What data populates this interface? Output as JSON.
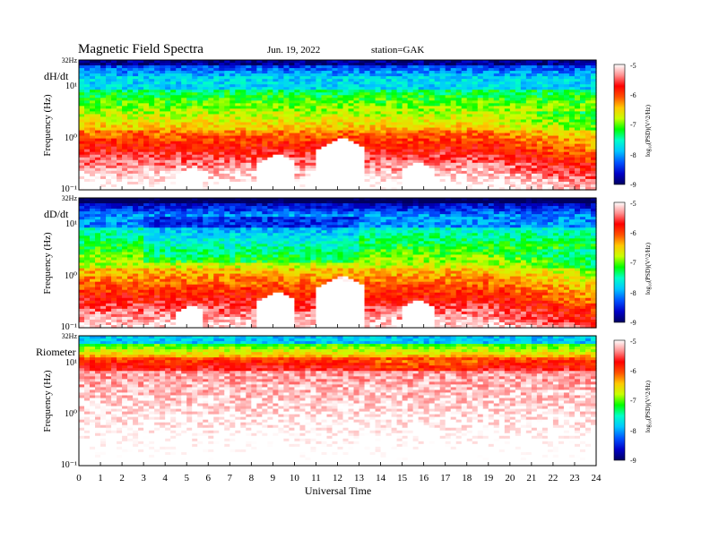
{
  "header": {
    "title": "Magnetic Field Spectra",
    "date": "Jun. 19, 2022",
    "station": "station=GAK"
  },
  "colors": {
    "scale": [
      "#000060",
      "#0000c8",
      "#0050ff",
      "#00c8ff",
      "#00ffc8",
      "#00ff00",
      "#c8ff00",
      "#ffc800",
      "#ff5000",
      "#ff0000",
      "#ff9090",
      "#ffffff"
    ]
  },
  "chart_data": [
    {
      "type": "heatmap",
      "panel_label": "dH/dt",
      "ylabel": "Frequency (Hz)",
      "top_tick": "32Hz",
      "y_ticks": [
        "10¹",
        "10⁰",
        "10⁻¹"
      ],
      "colorbar_label": "log₁₀(PSD)(V^2/Hz)",
      "colorbar_ticks": [
        "-5",
        "-6",
        "-7",
        "-8",
        "-9"
      ],
      "clim": [
        -9,
        -5
      ],
      "ylim": [
        0.1,
        32
      ],
      "y_scale": "log"
    },
    {
      "type": "heatmap",
      "panel_label": "dD/dt",
      "ylabel": "Frequency (Hz)",
      "top_tick": "32Hz",
      "y_ticks": [
        "10¹",
        "10⁰",
        "10⁻¹"
      ],
      "colorbar_label": "log₁₀(PSD)(V^2/Hz)",
      "colorbar_ticks": [
        "-5",
        "-6",
        "-7",
        "-8",
        "-9"
      ],
      "clim": [
        -9,
        -5
      ],
      "ylim": [
        0.1,
        32
      ],
      "y_scale": "log"
    },
    {
      "type": "heatmap",
      "panel_label": "Riometer",
      "ylabel": "Frequency (Hz)",
      "top_tick": "32Hz",
      "y_ticks": [
        "10¹",
        "10⁰",
        "10⁻¹"
      ],
      "colorbar_label": "log₁₀(PSD)(V^2/Hz)",
      "colorbar_ticks": [
        "-5",
        "-6",
        "-7",
        "-8",
        "-9"
      ],
      "clim": [
        -9,
        -5
      ],
      "ylim": [
        0.1,
        32
      ],
      "y_scale": "log"
    }
  ],
  "xaxis": {
    "label": "Universal Time",
    "ticks": [
      "0",
      "1",
      "2",
      "3",
      "4",
      "5",
      "6",
      "7",
      "8",
      "9",
      "10",
      "11",
      "12",
      "13",
      "14",
      "15",
      "16",
      "17",
      "18",
      "19",
      "20",
      "21",
      "22",
      "23",
      "24"
    ],
    "xlim": [
      0,
      24
    ]
  }
}
